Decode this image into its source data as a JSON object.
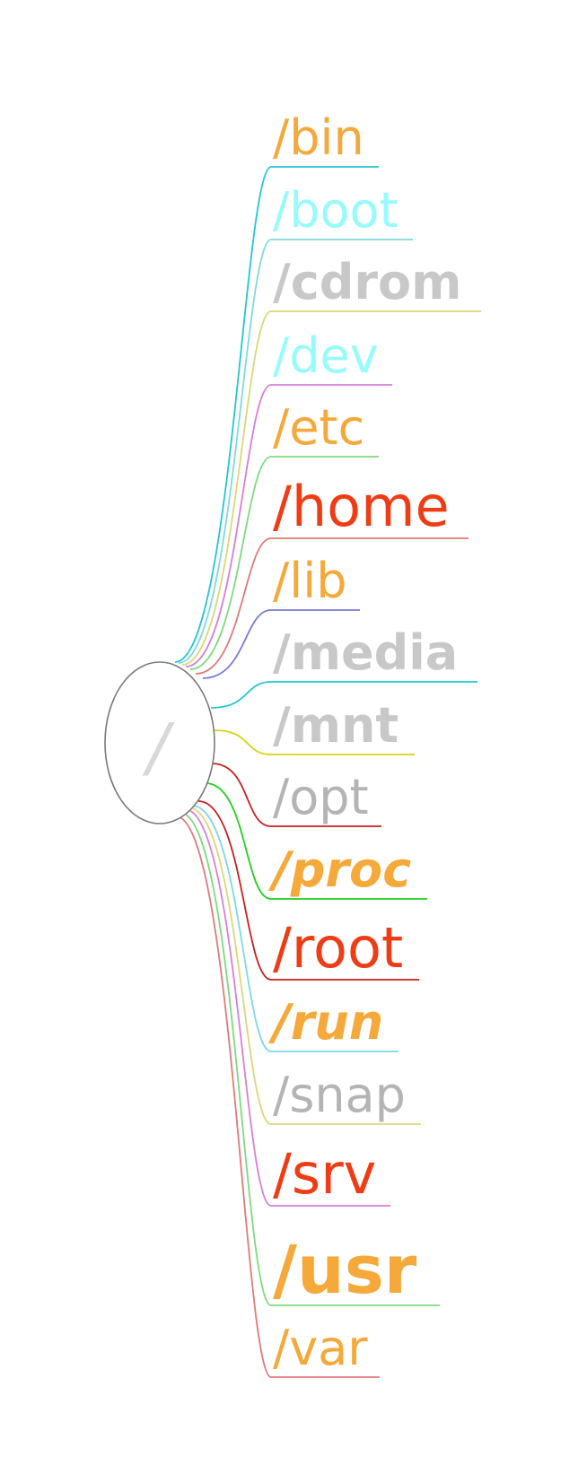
{
  "root": {
    "label": "/",
    "label_color": "#d8d8d8",
    "outline_color": "#7a7a7a"
  },
  "nodes": [
    {
      "label": "/bin",
      "color": "#f5a93a",
      "line": "#22c7cf",
      "weight": "normal",
      "style": "normal"
    },
    {
      "label": "/boot",
      "color": "#98fbfb",
      "line": "#7fd9e0",
      "weight": "normal",
      "style": "normal"
    },
    {
      "label": "/cdrom",
      "color": "#c8c8c8",
      "line": "#dcd678",
      "weight": "bold",
      "style": "normal"
    },
    {
      "label": "/dev",
      "color": "#98fbfb",
      "line": "#d77fd9",
      "weight": "normal",
      "style": "normal"
    },
    {
      "label": "/etc",
      "color": "#f5a93a",
      "line": "#7fd97f",
      "weight": "normal",
      "style": "normal"
    },
    {
      "label": "/home",
      "color": "#f03c14",
      "line": "#e07a7a",
      "weight": "normal",
      "style": "normal"
    },
    {
      "label": "/lib",
      "color": "#f5a93a",
      "line": "#7a7ad9",
      "weight": "normal",
      "style": "normal"
    },
    {
      "label": "/media",
      "color": "#c8c8c8",
      "line": "#22c7cf",
      "weight": "bold",
      "style": "normal"
    },
    {
      "label": "/mnt",
      "color": "#c8c8c8",
      "line": "#d9d214",
      "weight": "bold",
      "style": "normal"
    },
    {
      "label": "/opt",
      "color": "#b4b4b4",
      "line": "#c81e1e",
      "weight": "normal",
      "style": "normal"
    },
    {
      "label": "/proc",
      "color": "#f5a93a",
      "line": "#1ed21e",
      "weight": "bold",
      "style": "italic"
    },
    {
      "label": "/root",
      "color": "#f03c14",
      "line": "#c81e1e",
      "weight": "normal",
      "style": "normal"
    },
    {
      "label": "/run",
      "color": "#f5a93a",
      "line": "#7fd9e0",
      "weight": "bold",
      "style": "italic"
    },
    {
      "label": "/snap",
      "color": "#b4b4b4",
      "line": "#dcd678",
      "weight": "normal",
      "style": "normal"
    },
    {
      "label": "/srv",
      "color": "#f03c14",
      "line": "#d77fd9",
      "weight": "normal",
      "style": "normal"
    },
    {
      "label": "/usr",
      "color": "#f5a93a",
      "line": "#7fd97f",
      "weight": "bold",
      "style": "normal"
    },
    {
      "label": "/var",
      "color": "#f5a93a",
      "line": "#e07a7a",
      "weight": "normal",
      "style": "normal"
    }
  ]
}
